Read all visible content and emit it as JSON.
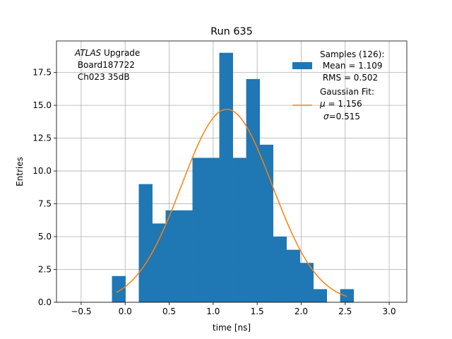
{
  "colors": {
    "bars": "#1f77b4",
    "fit": "#ff7f0e",
    "grid": "#b0b0b0",
    "axis": "#000000"
  },
  "chart_data": {
    "type": "bar",
    "title": "Run 635",
    "xlabel": "time [ns]",
    "ylabel": "Entries",
    "xlim": [
      -0.78,
      3.2
    ],
    "ylim": [
      0,
      19.9
    ],
    "grid": true,
    "xticks": [
      -0.5,
      0.0,
      0.5,
      1.0,
      1.5,
      2.0,
      2.5,
      3.0
    ],
    "xtick_labels": [
      "−0.5",
      "0.0",
      "0.5",
      "1.0",
      "1.5",
      "2.0",
      "2.5",
      "3.0"
    ],
    "yticks": [
      0.0,
      2.5,
      5.0,
      7.5,
      10.0,
      12.5,
      15.0,
      17.5
    ],
    "ytick_labels": [
      "0.0",
      "2.5",
      "5.0",
      "7.5",
      "10.0",
      "12.5",
      "15.0",
      "17.5"
    ],
    "histogram": {
      "name": "Samples",
      "bin_width": 0.1525,
      "bin_starts": [
        -0.15,
        0.155,
        0.3075,
        0.46,
        0.6125,
        0.765,
        0.9175,
        1.07,
        1.2225,
        1.375,
        1.5275,
        1.68,
        1.8325,
        1.985,
        2.1375,
        2.4425
      ],
      "counts": [
        2,
        9,
        6,
        7,
        7,
        11,
        11,
        19,
        11,
        17,
        12,
        5,
        4,
        3,
        1,
        1
      ]
    },
    "fit": {
      "name": "Gaussian Fit",
      "type": "gaussian",
      "mu": 1.156,
      "sigma": 0.515,
      "amplitude": 14.7,
      "x_range": [
        -0.1,
        2.52
      ]
    },
    "annotation": {
      "line1_italic": "ATLAS",
      "line1_rest": " Upgrade",
      "line2": " Board187722",
      "line3": " Ch023 35dB"
    },
    "legend": {
      "location": "top-right",
      "samples_line1": "Samples (126):",
      "samples_line2": " Mean = 1.109",
      "samples_line3": " RMS = 0.502",
      "fit_line1": "Gaussian Fit:",
      "fit_line2_symbol": "μ",
      "fit_line2_rest": " = 1.156",
      "fit_line3_symbol": "σ",
      "fit_line3_rest": "=0.515"
    }
  }
}
